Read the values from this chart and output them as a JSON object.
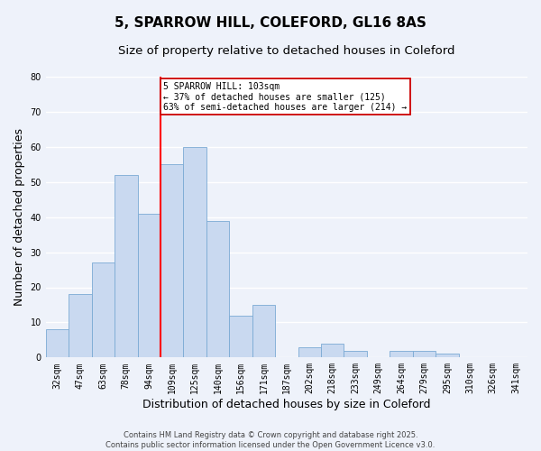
{
  "title": "5, SPARROW HILL, COLEFORD, GL16 8AS",
  "subtitle": "Size of property relative to detached houses in Coleford",
  "xlabel": "Distribution of detached houses by size in Coleford",
  "ylabel": "Number of detached properties",
  "bin_labels": [
    "32sqm",
    "47sqm",
    "63sqm",
    "78sqm",
    "94sqm",
    "109sqm",
    "125sqm",
    "140sqm",
    "156sqm",
    "171sqm",
    "187sqm",
    "202sqm",
    "218sqm",
    "233sqm",
    "249sqm",
    "264sqm",
    "279sqm",
    "295sqm",
    "310sqm",
    "326sqm",
    "341sqm"
  ],
  "bar_heights": [
    8,
    18,
    27,
    52,
    41,
    55,
    60,
    39,
    12,
    15,
    0,
    3,
    4,
    2,
    0,
    2,
    2,
    1,
    0,
    0,
    0
  ],
  "bar_color": "#c9d9f0",
  "bar_edgecolor": "#7baad4",
  "red_line_index": 5,
  "annotation_text": "5 SPARROW HILL: 103sqm\n← 37% of detached houses are smaller (125)\n63% of semi-detached houses are larger (214) →",
  "annotation_box_color": "#ffffff",
  "annotation_box_edgecolor": "#cc0000",
  "ylim": [
    0,
    80
  ],
  "yticks": [
    0,
    10,
    20,
    30,
    40,
    50,
    60,
    70,
    80
  ],
  "footer_line1": "Contains HM Land Registry data © Crown copyright and database right 2025.",
  "footer_line2": "Contains public sector information licensed under the Open Government Licence v3.0.",
  "background_color": "#eef2fa",
  "grid_color": "#ffffff",
  "title_fontsize": 11,
  "subtitle_fontsize": 9.5,
  "tick_fontsize": 7,
  "label_fontsize": 9,
  "annotation_fontsize": 7,
  "footer_fontsize": 6
}
